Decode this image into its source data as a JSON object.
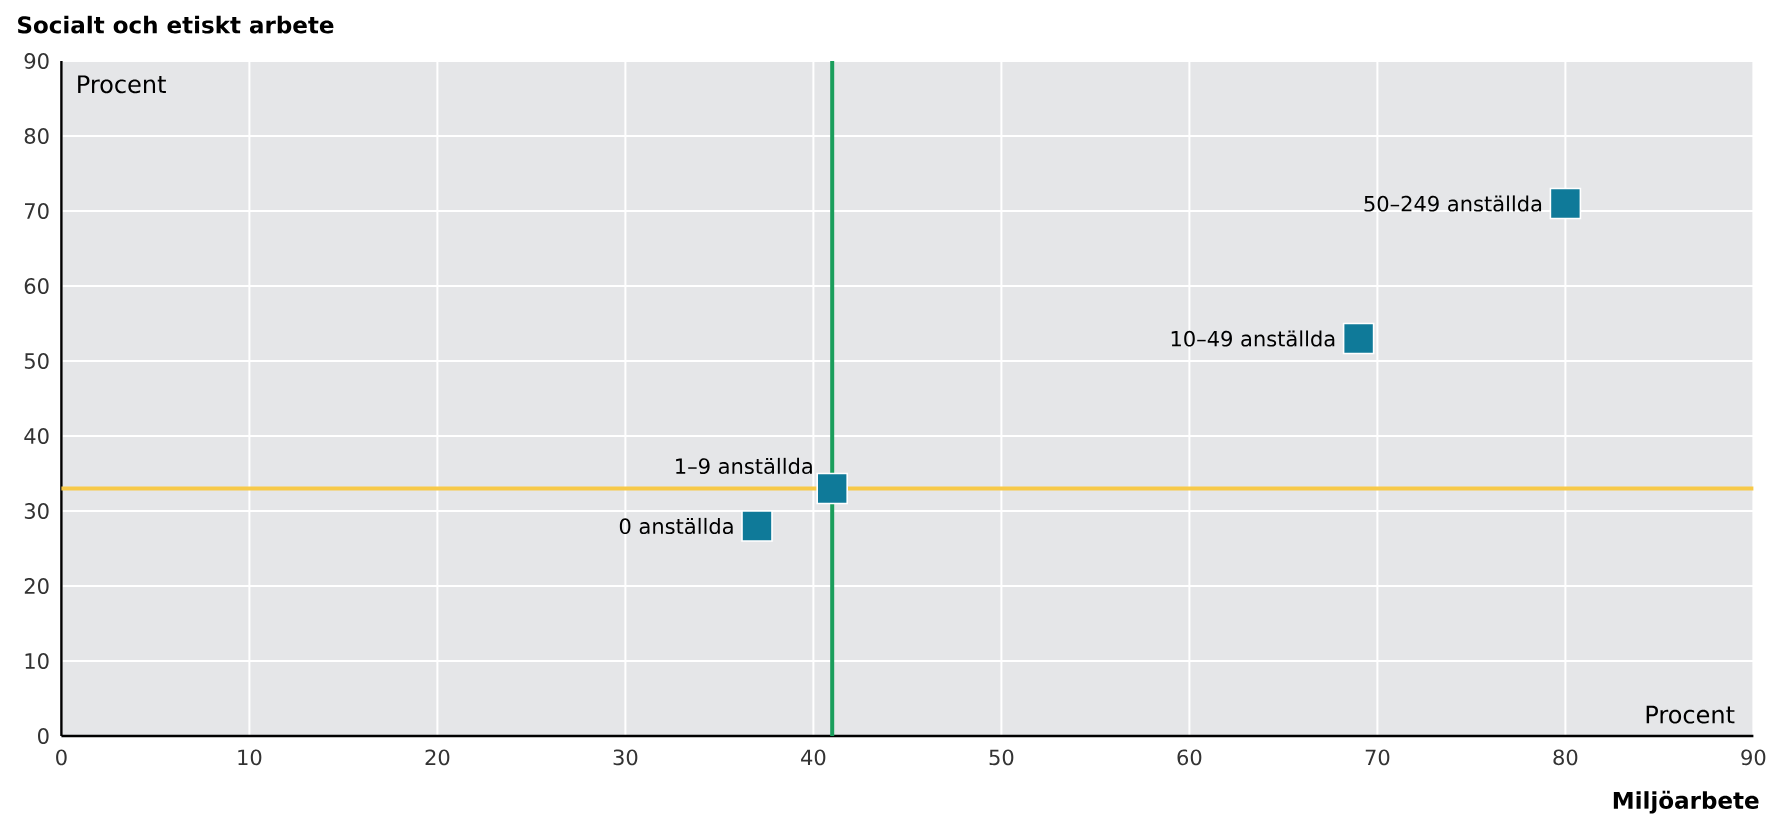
{
  "chart_data": {
    "type": "scatter",
    "xlabel": "Miljöarbete",
    "ylabel": "Socialt och etiskt arbete",
    "xlim": [
      0,
      90
    ],
    "ylim": [
      0,
      90
    ],
    "xticks": [
      0,
      10,
      20,
      30,
      40,
      50,
      60,
      70,
      80,
      90
    ],
    "yticks": [
      0,
      10,
      20,
      30,
      40,
      50,
      60,
      70,
      80,
      90
    ],
    "grid": true,
    "marker": "square",
    "series": [
      {
        "color": "#0f7a99",
        "x": [
          37,
          41,
          69,
          80
        ],
        "values": [
          28,
          33,
          53,
          71
        ]
      }
    ],
    "ref_lines": [
      {
        "axis": "x",
        "value": 41,
        "color": "#1a9e5c"
      },
      {
        "axis": "y",
        "value": 33,
        "color": "#f7c948"
      }
    ],
    "annotations": [
      "Procent",
      "Procent",
      {
        "text": "0 anställda",
        "x": 37,
        "y": 28
      },
      {
        "text": "1–9 anställda",
        "x": 41,
        "y": 33
      },
      {
        "text": "10–49 anställda",
        "x": 69,
        "y": 53
      },
      {
        "text": "50–249 anställda",
        "x": 80,
        "y": 71
      }
    ]
  }
}
